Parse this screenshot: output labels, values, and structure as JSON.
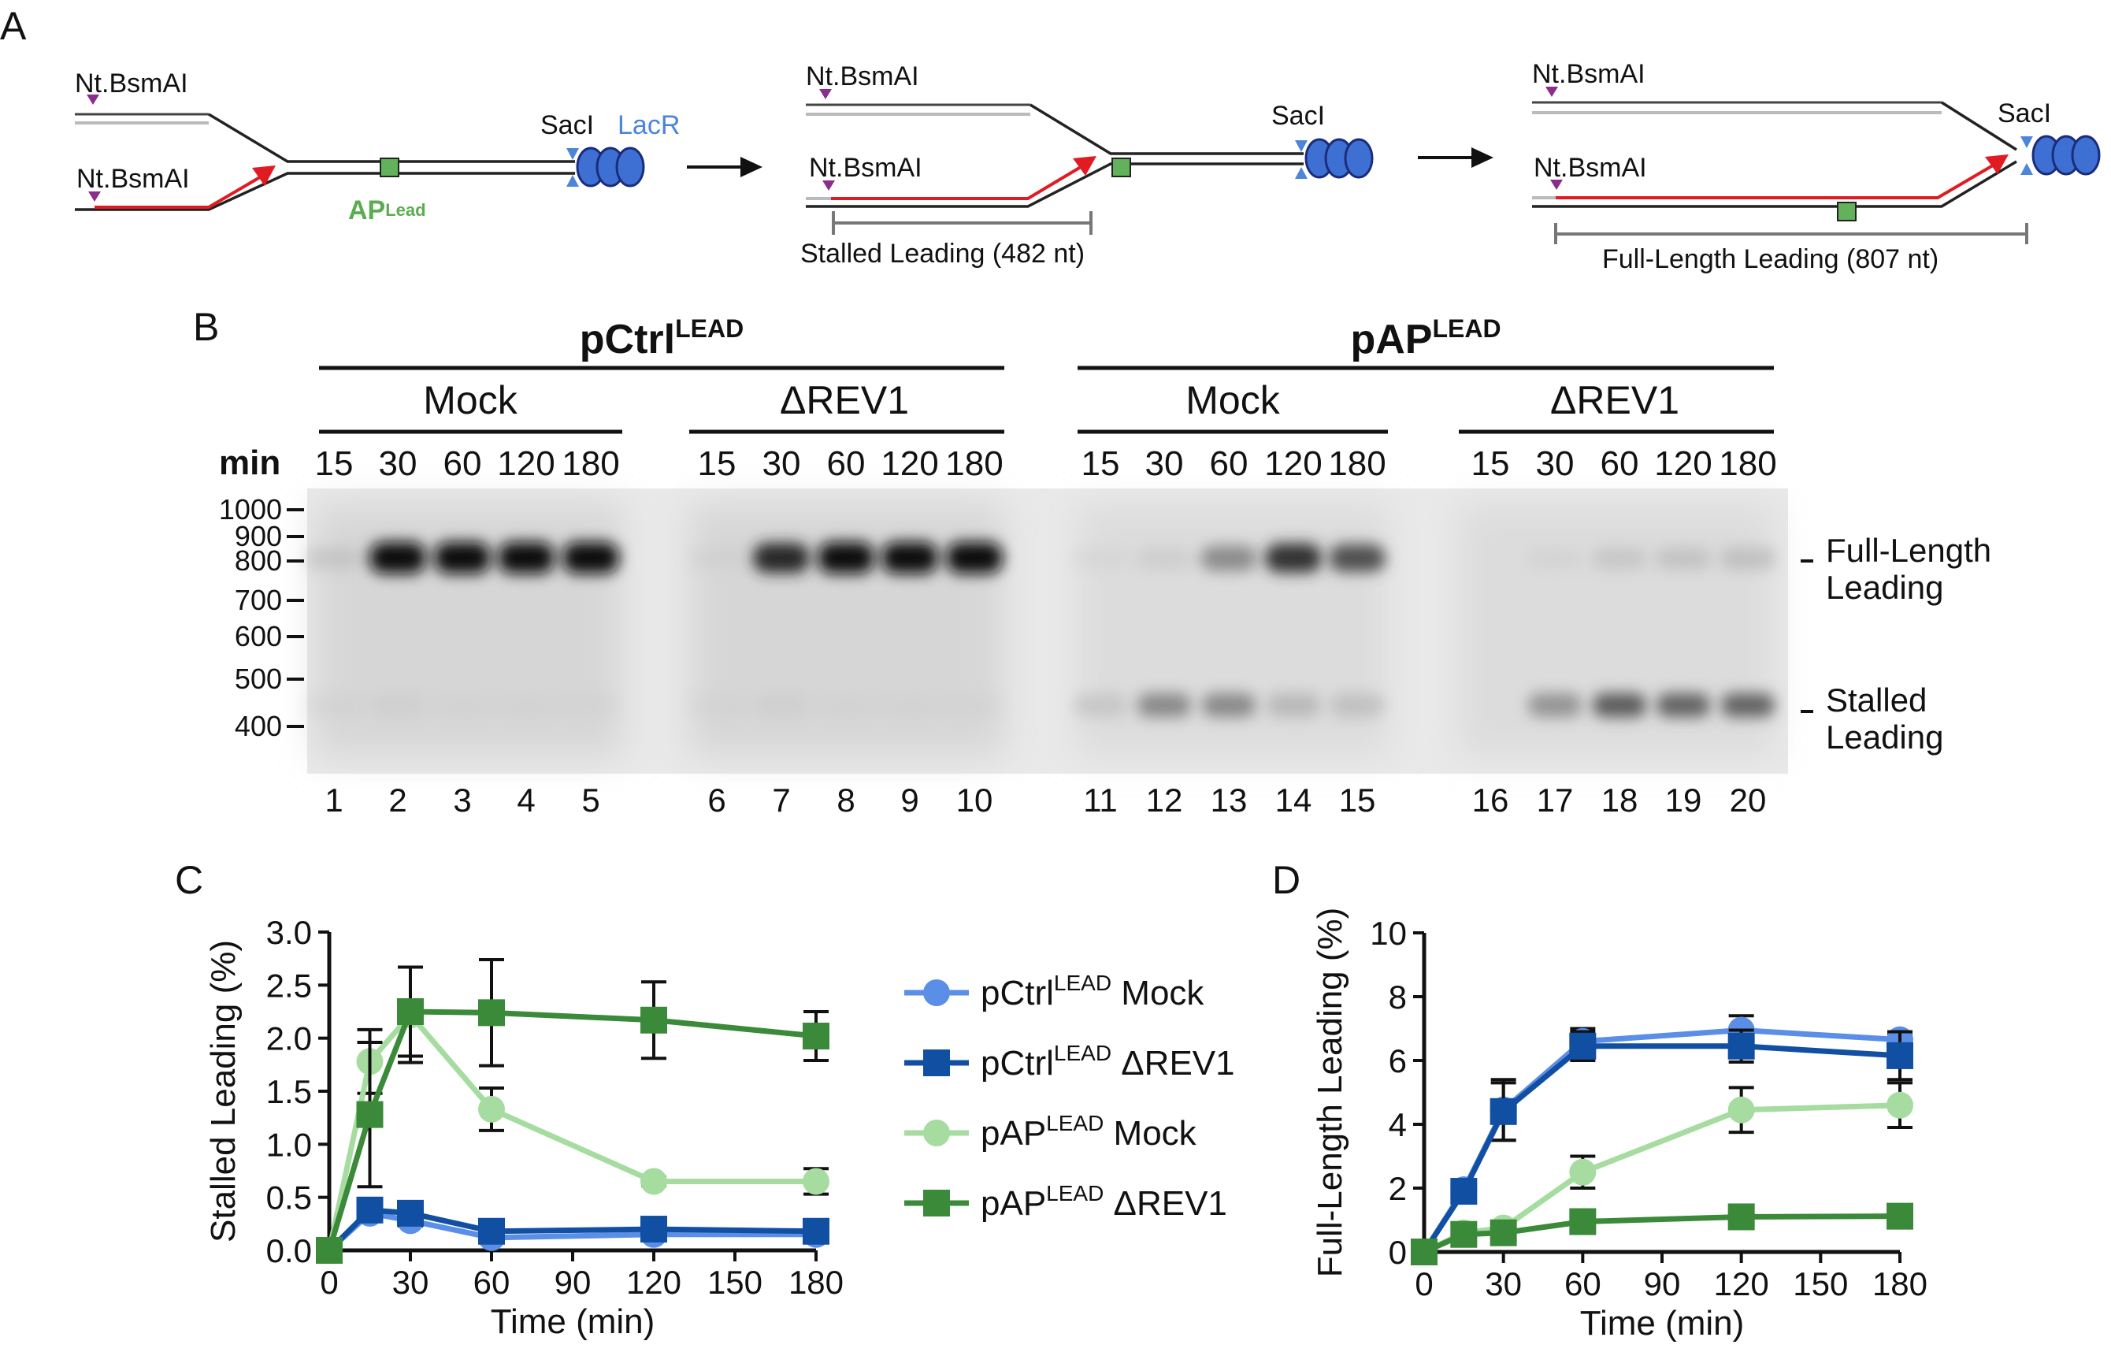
{
  "panels": {
    "a": "A",
    "b": "B",
    "c": "C",
    "d": "D"
  },
  "panel_a": {
    "nicking_enzyme": "Nt.BsmAI",
    "saci": "SacI",
    "lacr": "LacR",
    "ap_label": "AP",
    "ap_sup": "Lead",
    "stalled_label": "Stalled Leading (482 nt)",
    "full_label": "Full-Length Leading (807 nt)"
  },
  "panel_b": {
    "groups": [
      {
        "label": "pCtrl",
        "sup": "LEAD"
      },
      {
        "label": "pAP",
        "sup": "LEAD"
      }
    ],
    "conditions": [
      "Mock",
      "ΔREV1",
      "Mock",
      "ΔREV1"
    ],
    "time_header": "min",
    "times": [
      "15",
      "30",
      "60",
      "120",
      "180"
    ],
    "lanes": [
      "1",
      "2",
      "3",
      "4",
      "5",
      "6",
      "7",
      "8",
      "9",
      "10",
      "11",
      "12",
      "13",
      "14",
      "15",
      "16",
      "17",
      "18",
      "19",
      "20"
    ],
    "markers": [
      "1000",
      "900",
      "800",
      "700",
      "600",
      "500",
      "400"
    ],
    "band_full": [
      "Full-Length",
      "Leading"
    ],
    "band_stalled": [
      "Stalled",
      "Leading"
    ],
    "full_band_intensity": [
      0.15,
      1.0,
      1.0,
      1.0,
      1.0,
      0.05,
      0.85,
      1.0,
      1.0,
      1.0,
      0.03,
      0.1,
      0.45,
      0.8,
      0.65,
      0.0,
      0.05,
      0.15,
      0.18,
      0.2
    ],
    "stalled_band_intensity": [
      0.05,
      0.08,
      0.03,
      0.03,
      0.03,
      0.03,
      0.08,
      0.03,
      0.03,
      0.03,
      0.2,
      0.55,
      0.55,
      0.3,
      0.25,
      0.0,
      0.5,
      0.75,
      0.7,
      0.7
    ]
  },
  "legend": [
    {
      "name": "pCtrl",
      "sup": "LEAD",
      "cond": "Mock",
      "color": "#5b8ee6",
      "marker": "circle"
    },
    {
      "name": "pCtrl",
      "sup": "LEAD",
      "cond": "ΔREV1",
      "color": "#114fa3",
      "marker": "square"
    },
    {
      "name": "pAP",
      "sup": "LEAD",
      "cond": "Mock",
      "color": "#a6dca0",
      "marker": "circle"
    },
    {
      "name": "pAP",
      "sup": "LEAD",
      "cond": "ΔREV1",
      "color": "#3b8a3a",
      "marker": "square"
    }
  ],
  "chart_data": [
    {
      "type": "line",
      "title": "",
      "xlabel": "Time (min)",
      "ylabel": "Stalled Leading (%)",
      "xlim": [
        0,
        180
      ],
      "ylim": [
        0,
        3
      ],
      "xticks": [
        0,
        30,
        60,
        90,
        120,
        150,
        180
      ],
      "yticks": [
        0,
        0.5,
        1,
        1.5,
        2,
        2.5,
        3
      ],
      "ytick_labels": [
        "0.0",
        "0.5",
        "1.0",
        "1.5",
        "2.0",
        "2.5",
        "3.0"
      ],
      "x": [
        0,
        15,
        30,
        60,
        120,
        180
      ],
      "series": [
        {
          "name": "pCtrl LEAD Mock",
          "values": [
            0,
            0.35,
            0.28,
            0.12,
            0.15,
            0.15
          ],
          "errors": [
            0,
            0.05,
            0.05,
            0.04,
            0.05,
            0.05
          ]
        },
        {
          "name": "pCtrl LEAD ΔREV1",
          "values": [
            0,
            0.38,
            0.35,
            0.18,
            0.2,
            0.18
          ],
          "errors": [
            0,
            0.06,
            0.06,
            0.05,
            0.06,
            0.06
          ]
        },
        {
          "name": "pAP LEAD Mock",
          "values": [
            0,
            1.78,
            2.22,
            1.33,
            0.65,
            0.65
          ],
          "errors": [
            0,
            0.3,
            0.45,
            0.2,
            0.04,
            0.12
          ]
        },
        {
          "name": "pAP LEAD ΔREV1",
          "values": [
            0,
            1.28,
            2.25,
            2.24,
            2.17,
            2.02
          ],
          "errors": [
            0,
            0.68,
            0.42,
            0.5,
            0.36,
            0.23
          ]
        }
      ]
    },
    {
      "type": "line",
      "title": "",
      "xlabel": "Time (min)",
      "ylabel": "Full-Length Leading  (%)",
      "xlim": [
        0,
        180
      ],
      "ylim": [
        0,
        10
      ],
      "xticks": [
        0,
        30,
        60,
        90,
        120,
        150,
        180
      ],
      "yticks": [
        0,
        2,
        4,
        6,
        8,
        10
      ],
      "ytick_labels": [
        "0",
        "2",
        "4",
        "6",
        "8",
        "10"
      ],
      "x": [
        0,
        15,
        30,
        60,
        120,
        180
      ],
      "series": [
        {
          "name": "pCtrl LEAD Mock",
          "values": [
            0,
            1.95,
            4.45,
            6.6,
            6.95,
            6.65
          ],
          "errors": [
            0,
            0.2,
            0.95,
            0.4,
            0.45,
            0.15
          ]
        },
        {
          "name": "pCtrl LEAD ΔREV1",
          "values": [
            0,
            1.9,
            4.4,
            6.45,
            6.45,
            6.15
          ],
          "errors": [
            0,
            0.2,
            0.9,
            0.45,
            0.5,
            0.75
          ]
        },
        {
          "name": "pAP LEAD Mock",
          "values": [
            0,
            0.6,
            0.75,
            2.5,
            4.45,
            4.6
          ],
          "errors": [
            0,
            0.1,
            0.1,
            0.5,
            0.7,
            0.7
          ]
        },
        {
          "name": "pAP LEAD ΔREV1",
          "values": [
            0,
            0.55,
            0.6,
            0.95,
            1.1,
            1.12
          ],
          "errors": [
            0,
            0.05,
            0.05,
            0.1,
            0.1,
            0.1
          ]
        }
      ]
    }
  ]
}
